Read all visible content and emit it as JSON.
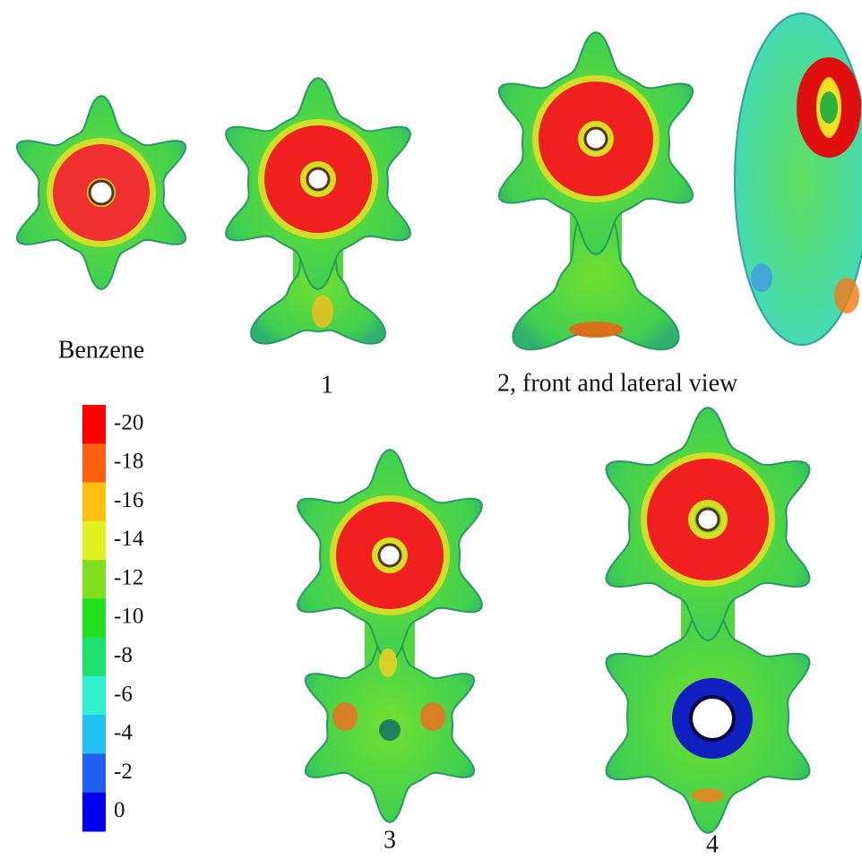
{
  "molecules": [
    {
      "label": "Benzene"
    },
    {
      "label": "1"
    },
    {
      "label": "2, front and lateral view"
    },
    {
      "label": "3"
    },
    {
      "label": "4"
    }
  ],
  "color_scale": {
    "ticks": [
      {
        "value": -20,
        "color": "#ff0000"
      },
      {
        "value": -18,
        "color": "#ff6010"
      },
      {
        "value": -16,
        "color": "#ffc010"
      },
      {
        "value": -14,
        "color": "#e0f020"
      },
      {
        "value": -12,
        "color": "#80e020"
      },
      {
        "value": -10,
        "color": "#20e020"
      },
      {
        "value": -8,
        "color": "#20e070"
      },
      {
        "value": -6,
        "color": "#30f0d0"
      },
      {
        "value": -4,
        "color": "#20c0f0"
      },
      {
        "value": -2,
        "color": "#2060f0"
      },
      {
        "value": 0,
        "color": "#0000f0"
      }
    ]
  }
}
